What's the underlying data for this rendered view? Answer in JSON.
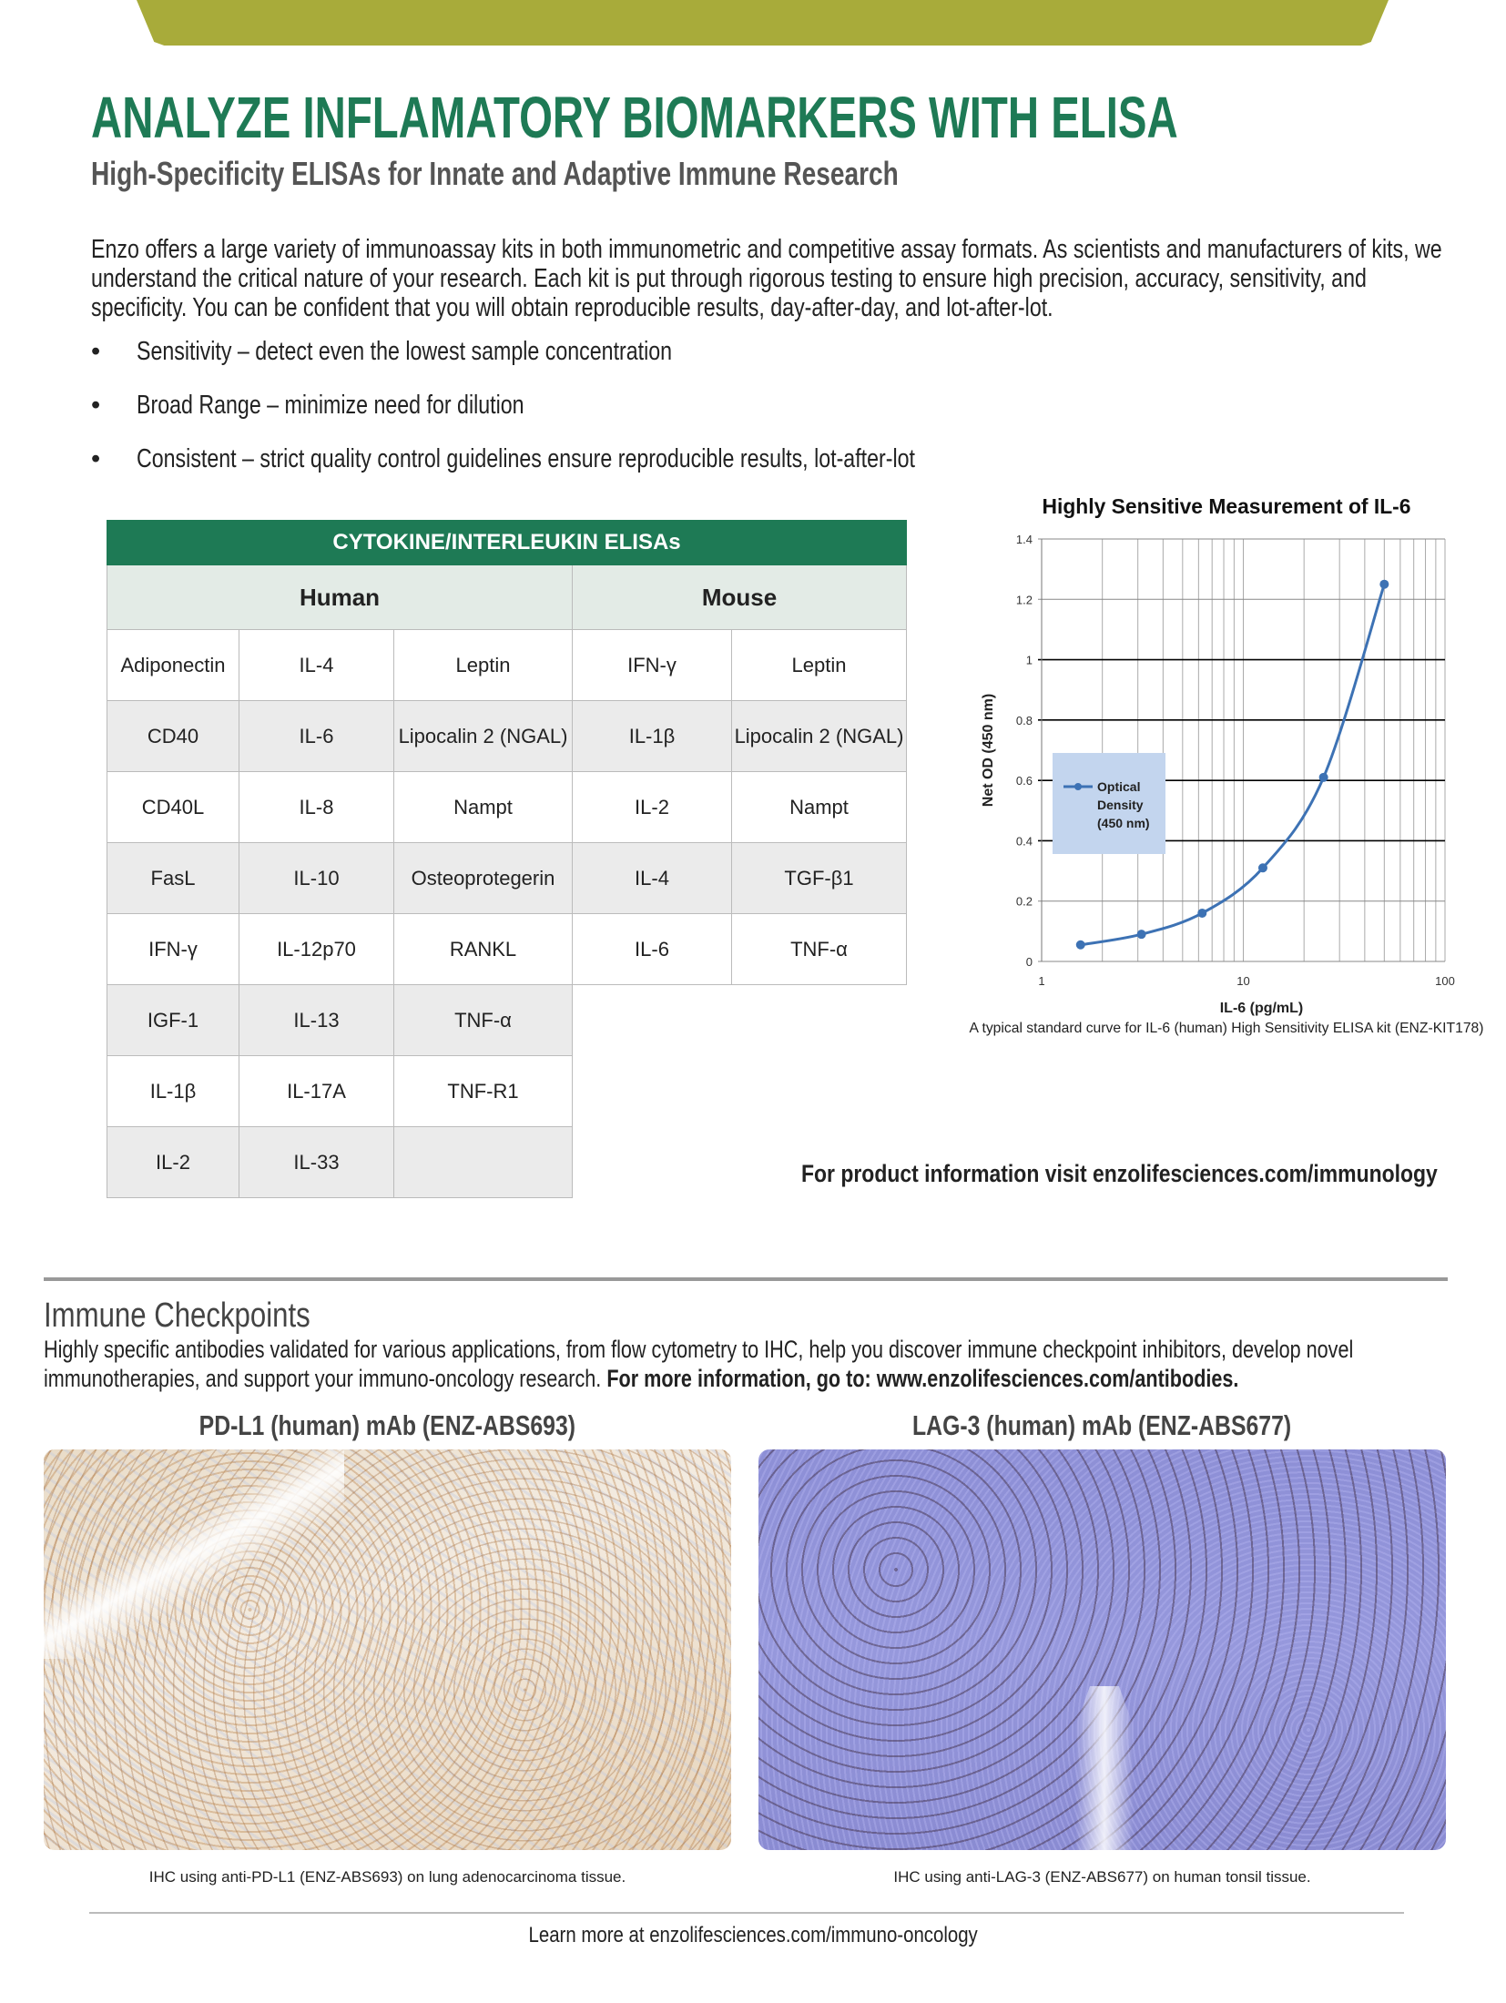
{
  "header": {
    "title": "ANALYZE INFLAMATORY BIOMARKERS WITH ELISA",
    "subtitle": "High-Specificity ELISAs for Innate and Adaptive Immune Research",
    "accent_color": "#1e7a55",
    "band_color": "#a8ab3a"
  },
  "intro": "Enzo offers a large variety of immunoassay kits in both immunometric and competitive assay formats. As scientists and manufacturers of kits, we understand the critical nature of your research. Each kit is put through rigorous testing to ensure high precision, accuracy, sensitivity, and specificity. You can be confident that you will obtain reproducible results, day-after-day, and lot-after-lot.",
  "bullets": [
    "Sensitivity – detect even the lowest sample concentration",
    "Broad Range – minimize need for dilution",
    "Consistent – strict quality control guidelines ensure reproducible results, lot-after-lot"
  ],
  "table": {
    "title": "CYTOKINE/INTERLEUKIN ELISAs",
    "groups": [
      "Human",
      "Mouse"
    ],
    "rows": [
      [
        "Adiponectin",
        "IL-4",
        "Leptin",
        "IFN-γ",
        "Leptin"
      ],
      [
        "CD40",
        "IL-6",
        "Lipocalin 2 (NGAL)",
        "IL-1β",
        "Lipocalin 2 (NGAL)"
      ],
      [
        "CD40L",
        "IL-8",
        "Nampt",
        "IL-2",
        "Nampt"
      ],
      [
        "FasL",
        "IL-10",
        "Osteoprotegerin",
        "IL-4",
        "TGF-β1"
      ],
      [
        "IFN-γ",
        "IL-12p70",
        "RANKL",
        "IL-6",
        "TNF-α"
      ],
      [
        "IGF-1",
        "IL-13",
        "TNF-α"
      ],
      [
        "IL-1β",
        "IL-17A",
        "TNF-R1"
      ],
      [
        "IL-2",
        "IL-33",
        ""
      ]
    ]
  },
  "chart_data": {
    "type": "line",
    "title": "Highly Sensitive Measurement of IL-6",
    "xlabel": "IL-6 (pg/mL)",
    "ylabel": "Net OD (450 nm)",
    "xscale": "log",
    "xlim": [
      1,
      100
    ],
    "ylim": [
      0,
      1.4
    ],
    "xticks": [
      "1",
      "10",
      "100"
    ],
    "yticks": [
      "0",
      "0.2",
      "0.4",
      "0.6",
      "0.8",
      "1",
      "1.2",
      "1.4"
    ],
    "grid": true,
    "legend_placement": "left",
    "series": [
      {
        "name": "Optical Density (450 nm)",
        "color": "#3d72b4",
        "x": [
          1.56,
          3.125,
          6.25,
          12.5,
          25,
          50
        ],
        "y": [
          0.055,
          0.09,
          0.16,
          0.31,
          0.61,
          1.25
        ]
      }
    ],
    "caption": "A typical standard curve for IL-6 (human) High Sensitivity ELISA kit (ENZ-KIT178)"
  },
  "product_info": "For product information visit enzolifesciences.com/immunology",
  "checkpoints": {
    "title": "Immune Checkpoints",
    "text": "Highly specific antibodies validated for various applications, from flow cytometry to IHC, help you discover immune checkpoint inhibitors, develop novel immunotherapies, and support your immuno-oncology research.",
    "text_bold": "For more information, go to: www.enzolifesciences.com/antibodies.",
    "images": [
      {
        "title": "PD-L1 (human) mAb (ENZ-ABS693)",
        "caption": "IHC using anti-PD-L1 (ENZ-ABS693) on lung adenocarcinoma tissue."
      },
      {
        "title": "LAG-3 (human) mAb (ENZ-ABS677)",
        "caption": "IHC using anti-LAG-3 (ENZ-ABS677) on human tonsil tissue."
      }
    ]
  },
  "footer": "Learn more at enzolifesciences.com/immuno-oncology"
}
